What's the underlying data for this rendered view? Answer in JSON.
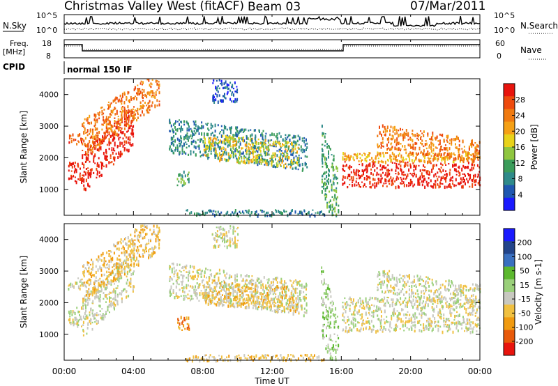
{
  "header": {
    "title": "Christmas Valley West (fitACF)",
    "beam": "Beam 03",
    "date": "07/Mar/2011"
  },
  "panels": {
    "nsky_label": "N.Sky",
    "nsky_ticks": [
      "10^5",
      "10^0"
    ],
    "nsearch_label": "N.Search",
    "nsearch_ticks": [
      "10^5",
      "10^0"
    ],
    "freq_label": "Freq.",
    "freq_unit": "[MHz]",
    "freq_ticks": [
      "18",
      "8"
    ],
    "nave_label": "Nave",
    "nave_ticks": [
      "60",
      "0"
    ],
    "cpid_label": "CPID",
    "cpid_value": "normal 150 IF"
  },
  "colors": {
    "power": [
      "#1a1aff",
      "#1f57b0",
      "#2f8a8a",
      "#3b9c5a",
      "#8fc63f",
      "#e8d21a",
      "#f5a015",
      "#f07a10",
      "#ee4a0d",
      "#e8140d"
    ],
    "velocity": [
      "#1a1aff",
      "#22448a",
      "#3a70c0",
      "#5cb82e",
      "#9ad07a",
      "#c8c8c0",
      "#f0c040",
      "#f09a10",
      "#e85a0a",
      "#e8140d"
    ]
  },
  "chart_data": [
    {
      "type": "heatmap",
      "name": "power",
      "xlabel": "",
      "ylabel": "Slant Range [km]",
      "xlim": [
        "00:00",
        "24:00"
      ],
      "ylim": [
        180,
        4500
      ],
      "yticks": [
        "1000",
        "2000",
        "3000",
        "4000"
      ],
      "colorbar_label": "Power [dB]",
      "colorbar_ticks": [
        "4",
        "8",
        "12",
        "16",
        "20",
        "24",
        "28"
      ],
      "bands": [
        {
          "t": [
            0.2,
            1.0
          ],
          "r": [
            2450,
            2800
          ],
          "level": 8
        },
        {
          "t": [
            0.2,
            1.0
          ],
          "r": [
            1250,
            1900
          ],
          "level": 9
        },
        {
          "t": [
            1.0,
            4.0
          ],
          "r": [
            900,
            2200
          ],
          "level": 9,
          "drift": 1500
        },
        {
          "t": [
            1.0,
            5.5
          ],
          "r": [
            2000,
            3200
          ],
          "level": 7,
          "drift": 1700
        },
        {
          "t": [
            6.0,
            14.0
          ],
          "r": [
            2200,
            3300
          ],
          "level": 2,
          "drift": -600
        },
        {
          "t": [
            8.0,
            13.5
          ],
          "r": [
            2000,
            2800
          ],
          "level": 5,
          "drift": -300
        },
        {
          "t": [
            6.5,
            7.2
          ],
          "r": [
            1150,
            1600
          ],
          "level": 3
        },
        {
          "t": [
            8.5,
            10.0
          ],
          "r": [
            3800,
            4500
          ],
          "level": 1
        },
        {
          "t": [
            14.8,
            15.8
          ],
          "r": [
            1000,
            3200
          ],
          "level": 3,
          "drift": -1500
        },
        {
          "t": [
            16.0,
            24.0
          ],
          "r": [
            1100,
            1900
          ],
          "level": 9
        },
        {
          "t": [
            16.0,
            24.0
          ],
          "r": [
            1900,
            2200
          ],
          "level": 6
        },
        {
          "t": [
            18.0,
            24.0
          ],
          "r": [
            2350,
            3100
          ],
          "level": 7,
          "drift": -500
        },
        {
          "t": [
            7.0,
            15.0
          ],
          "r": [
            200,
            380
          ],
          "level": 2
        }
      ]
    },
    {
      "type": "heatmap",
      "name": "velocity",
      "xlabel": "Time UT",
      "ylabel": "Slant Range [km]",
      "xlim": [
        "00:00",
        "24:00"
      ],
      "ylim": [
        180,
        4500
      ],
      "xticks": [
        "00:00",
        "04:00",
        "08:00",
        "12:00",
        "16:00",
        "20:00",
        "00:00"
      ],
      "yticks": [
        "1000",
        "2000",
        "3000",
        "4000"
      ],
      "colorbar_label": "Velocity [m s-1]",
      "colorbar_ticks": [
        "200",
        "100",
        "50",
        "15",
        "-15",
        "-50",
        "-100",
        "-200"
      ],
      "bands": [
        {
          "t": [
            0.2,
            1.0
          ],
          "r": [
            2450,
            2800
          ],
          "level": 5
        },
        {
          "t": [
            0.2,
            1.0
          ],
          "r": [
            1250,
            1900
          ],
          "level": 5
        },
        {
          "t": [
            1.0,
            4.0
          ],
          "r": [
            900,
            2200
          ],
          "level": 5,
          "drift": 1500
        },
        {
          "t": [
            1.0,
            5.5
          ],
          "r": [
            2000,
            3200
          ],
          "level": 6,
          "drift": 1700
        },
        {
          "t": [
            6.0,
            14.0
          ],
          "r": [
            2200,
            3300
          ],
          "level": 5,
          "drift": -600
        },
        {
          "t": [
            8.0,
            13.5
          ],
          "r": [
            2000,
            2800
          ],
          "level": 6,
          "drift": -300
        },
        {
          "t": [
            6.5,
            7.2
          ],
          "r": [
            1150,
            1600
          ],
          "level": 7
        },
        {
          "t": [
            8.5,
            10.0
          ],
          "r": [
            3800,
            4500
          ],
          "level": 5
        },
        {
          "t": [
            14.8,
            15.8
          ],
          "r": [
            1000,
            3200
          ],
          "level": 4,
          "drift": -1500
        },
        {
          "t": [
            16.0,
            24.0
          ],
          "r": [
            1100,
            1900
          ],
          "level": 5
        },
        {
          "t": [
            16.0,
            24.0
          ],
          "r": [
            1900,
            2200
          ],
          "level": 5
        },
        {
          "t": [
            18.0,
            24.0
          ],
          "r": [
            2350,
            3100
          ],
          "level": 5,
          "drift": -500
        },
        {
          "t": [
            7.0,
            15.0
          ],
          "r": [
            200,
            380
          ],
          "level": 6
        }
      ]
    }
  ]
}
